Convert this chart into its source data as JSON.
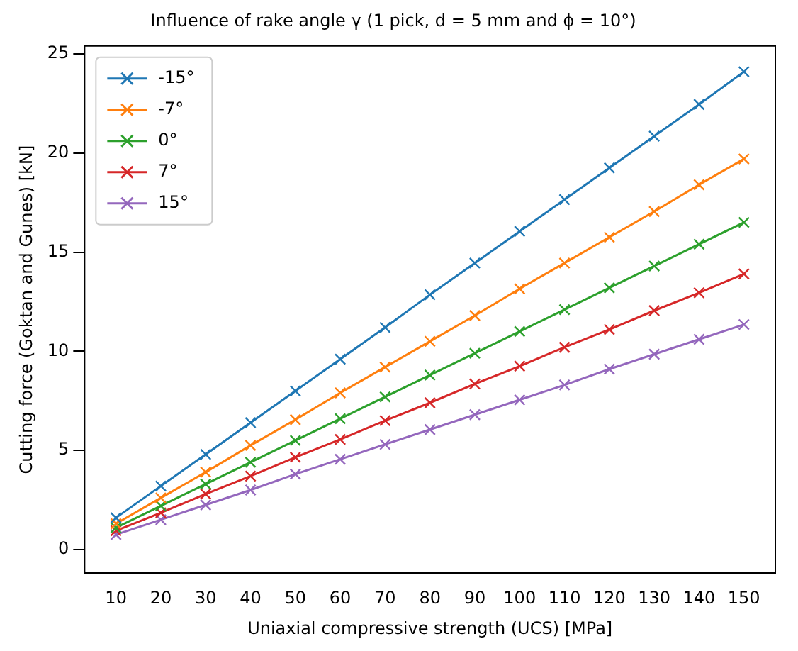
{
  "chart_data": {
    "type": "line",
    "title": "Influence of rake angle γ (1 pick, d = 5 mm and ϕ = 10°)",
    "xlabel": "Uniaxial compressive strength (UCS) [MPa]",
    "ylabel": "Cutting force (Goktan and Gunes) [kN]",
    "x": [
      10,
      20,
      30,
      40,
      50,
      60,
      70,
      80,
      90,
      100,
      110,
      120,
      130,
      140,
      150
    ],
    "series": [
      {
        "name": "-15°",
        "color": "#1f77b4",
        "values": [
          1.6,
          3.2,
          4.8,
          6.4,
          8.0,
          9.6,
          11.2,
          12.85,
          14.45,
          16.05,
          17.65,
          19.25,
          20.85,
          22.45,
          24.1
        ]
      },
      {
        "name": "-7°",
        "color": "#ff7f0e",
        "values": [
          1.3,
          2.6,
          3.9,
          5.25,
          6.55,
          7.9,
          9.2,
          10.5,
          11.8,
          13.15,
          14.45,
          15.75,
          17.05,
          18.4,
          19.7
        ]
      },
      {
        "name": "0°",
        "color": "#2ca02c",
        "values": [
          1.1,
          2.2,
          3.3,
          4.4,
          5.5,
          6.6,
          7.7,
          8.8,
          9.9,
          11.0,
          12.1,
          13.2,
          14.3,
          15.4,
          16.5
        ]
      },
      {
        "name": "7°",
        "color": "#d62728",
        "values": [
          0.95,
          1.85,
          2.8,
          3.7,
          4.65,
          5.55,
          6.5,
          7.4,
          8.35,
          9.25,
          10.2,
          11.1,
          12.05,
          12.95,
          13.9
        ]
      },
      {
        "name": "15°",
        "color": "#9467bd",
        "values": [
          0.75,
          1.5,
          2.25,
          3.0,
          3.8,
          4.55,
          5.3,
          6.05,
          6.8,
          7.55,
          8.3,
          9.1,
          9.85,
          10.6,
          11.35
        ]
      }
    ],
    "xlim": [
      3,
      157
    ],
    "xticks": [
      10,
      20,
      30,
      40,
      50,
      60,
      70,
      80,
      90,
      100,
      110,
      120,
      130,
      140,
      150
    ],
    "ylim": [
      -1.2,
      25.4
    ],
    "yticks": [
      0,
      5,
      10,
      15,
      20,
      25
    ],
    "grid": false,
    "legend": "top left",
    "marker": "cross",
    "line_style": "solid"
  }
}
